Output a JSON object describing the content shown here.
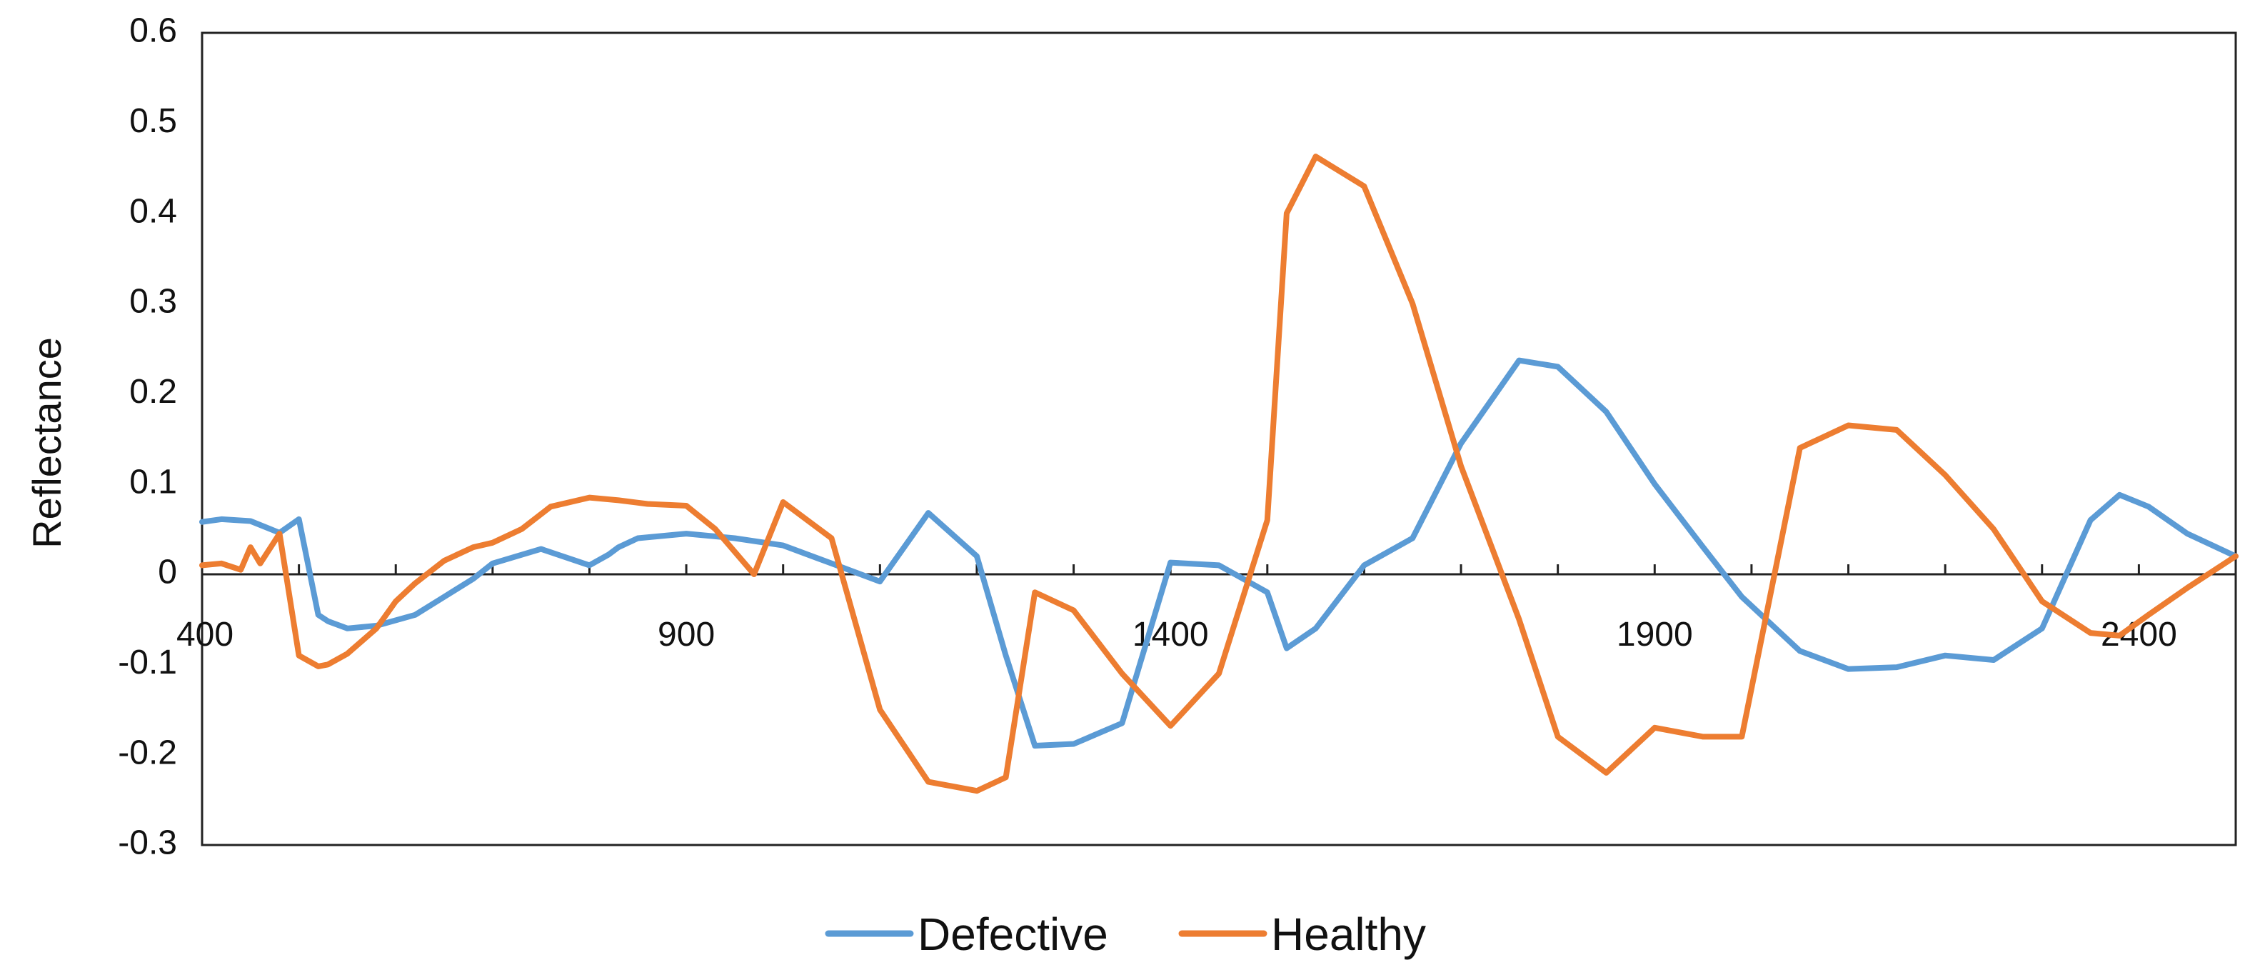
{
  "chart_data": {
    "type": "line",
    "title": "",
    "xlabel": "",
    "ylabel": "Reflectance",
    "xlim": [
      400,
      2500
    ],
    "ylim": [
      -0.3,
      0.6
    ],
    "x_ticks": [
      400,
      900,
      1400,
      1900,
      2400
    ],
    "x_tick_labels": [
      "400",
      "900",
      "1400",
      "1900",
      "2400"
    ],
    "y_ticks": [
      -0.3,
      -0.2,
      -0.1,
      0,
      0.1,
      0.2,
      0.3,
      0.4,
      0.5,
      0.6
    ],
    "y_tick_labels": [
      "-0.3",
      "-0.2",
      "-0.1",
      "0",
      "0.1",
      "0.2",
      "0.3",
      "0.4",
      "0.5",
      "0.6"
    ],
    "grid": false,
    "legend_position": "bottom",
    "series": [
      {
        "name": "Defective",
        "color": "#5B9BD5",
        "x": [
          400,
          420,
          450,
          480,
          500,
          520,
          530,
          550,
          580,
          620,
          650,
          680,
          700,
          750,
          800,
          820,
          830,
          850,
          900,
          950,
          1000,
          1050,
          1100,
          1150,
          1200,
          1230,
          1260,
          1300,
          1350,
          1400,
          1450,
          1500,
          1520,
          1550,
          1600,
          1650,
          1700,
          1760,
          1800,
          1850,
          1900,
          1950,
          1990,
          2050,
          2100,
          2150,
          2200,
          2250,
          2300,
          2350,
          2380,
          2410,
          2450,
          2500
        ],
        "y": [
          0.058,
          0.061,
          0.059,
          0.046,
          0.061,
          -0.045,
          -0.052,
          -0.06,
          -0.057,
          -0.045,
          -0.025,
          -0.005,
          0.012,
          0.028,
          0.01,
          0.022,
          0.03,
          0.04,
          0.045,
          0.04,
          0.032,
          0.012,
          -0.008,
          0.068,
          0.02,
          -0.09,
          -0.19,
          -0.188,
          -0.165,
          0.013,
          0.01,
          -0.02,
          -0.082,
          -0.06,
          0.01,
          0.04,
          0.145,
          0.237,
          0.23,
          0.18,
          0.1,
          0.03,
          -0.025,
          -0.085,
          -0.105,
          -0.103,
          -0.09,
          -0.095,
          -0.06,
          0.06,
          0.088,
          0.075,
          0.045,
          0.02
        ]
      },
      {
        "name": "Healthy",
        "color": "#ED7D31",
        "x": [
          400,
          420,
          440,
          450,
          460,
          480,
          500,
          520,
          530,
          550,
          580,
          600,
          620,
          650,
          680,
          700,
          730,
          760,
          800,
          830,
          860,
          900,
          930,
          950,
          970,
          1000,
          1050,
          1100,
          1150,
          1200,
          1230,
          1260,
          1300,
          1350,
          1400,
          1450,
          1500,
          1520,
          1550,
          1600,
          1650,
          1700,
          1760,
          1800,
          1850,
          1900,
          1950,
          1990,
          2050,
          2100,
          2150,
          2200,
          2250,
          2300,
          2350,
          2380,
          2410,
          2450,
          2500
        ],
        "y": [
          0.01,
          0.012,
          0.005,
          0.03,
          0.012,
          0.045,
          -0.09,
          -0.102,
          -0.1,
          -0.088,
          -0.06,
          -0.03,
          -0.01,
          0.015,
          0.03,
          0.035,
          0.05,
          0.075,
          0.085,
          0.082,
          0.078,
          0.076,
          0.05,
          0.025,
          0.0,
          0.08,
          0.04,
          -0.15,
          -0.23,
          -0.24,
          -0.225,
          -0.02,
          -0.04,
          -0.11,
          -0.168,
          -0.11,
          0.06,
          0.4,
          0.463,
          0.43,
          0.3,
          0.12,
          -0.05,
          -0.18,
          -0.22,
          -0.17,
          -0.18,
          -0.18,
          0.14,
          0.165,
          0.16,
          0.11,
          0.05,
          -0.03,
          -0.065,
          -0.068,
          -0.045,
          -0.015,
          0.02
        ]
      }
    ]
  }
}
